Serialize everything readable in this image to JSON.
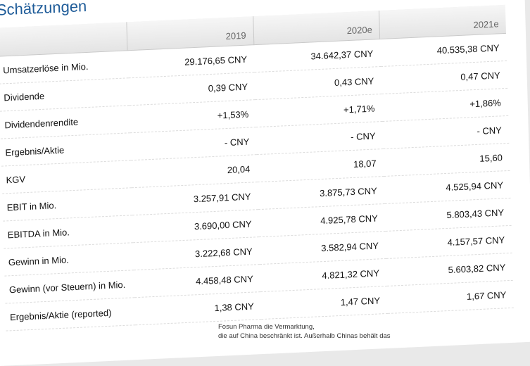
{
  "title": "Schätzungen",
  "columns": [
    "",
    "2019",
    "2020e",
    "2021e"
  ],
  "rows": [
    {
      "label": "Umsatzerlöse in Mio.",
      "values": [
        "29.176,65 CNY",
        "34.642,37 CNY",
        "40.535,38 CNY"
      ]
    },
    {
      "label": "Dividende",
      "values": [
        "0,39 CNY",
        "0,43 CNY",
        "0,47 CNY"
      ]
    },
    {
      "label": "Dividendenrendite",
      "values": [
        "+1,53%",
        "+1,71%",
        "+1,86%"
      ]
    },
    {
      "label": "Ergebnis/Aktie",
      "values": [
        "- CNY",
        "- CNY",
        "- CNY"
      ]
    },
    {
      "label": "KGV",
      "values": [
        "20,04",
        "18,07",
        "15,60"
      ]
    },
    {
      "label": "EBIT in Mio.",
      "values": [
        "3.257,91 CNY",
        "3.875,73 CNY",
        "4.525,94 CNY"
      ]
    },
    {
      "label": "EBITDA in Mio.",
      "values": [
        "3.690,00 CNY",
        "4.925,78 CNY",
        "5.803,43 CNY"
      ]
    },
    {
      "label": "Gewinn in Mio.",
      "values": [
        "3.222,68 CNY",
        "3.582,94 CNY",
        "4.157,57 CNY"
      ]
    },
    {
      "label": "Gewinn (vor Steuern) in Mio.",
      "values": [
        "4.458,48 CNY",
        "4.821,32 CNY",
        "5.603,82 CNY"
      ]
    },
    {
      "label": "Ergebnis/Aktie (reported)",
      "values": [
        "1,38 CNY",
        "1,47 CNY",
        "1,67 CNY"
      ]
    }
  ],
  "background_text": [
    "Fosun Pharma die Vermarktung,",
    "die auf China beschränkt ist. Außerhalb Chinas behält das"
  ],
  "colors": {
    "title": "#1f5c99",
    "header_bg": "#ececec"
  }
}
